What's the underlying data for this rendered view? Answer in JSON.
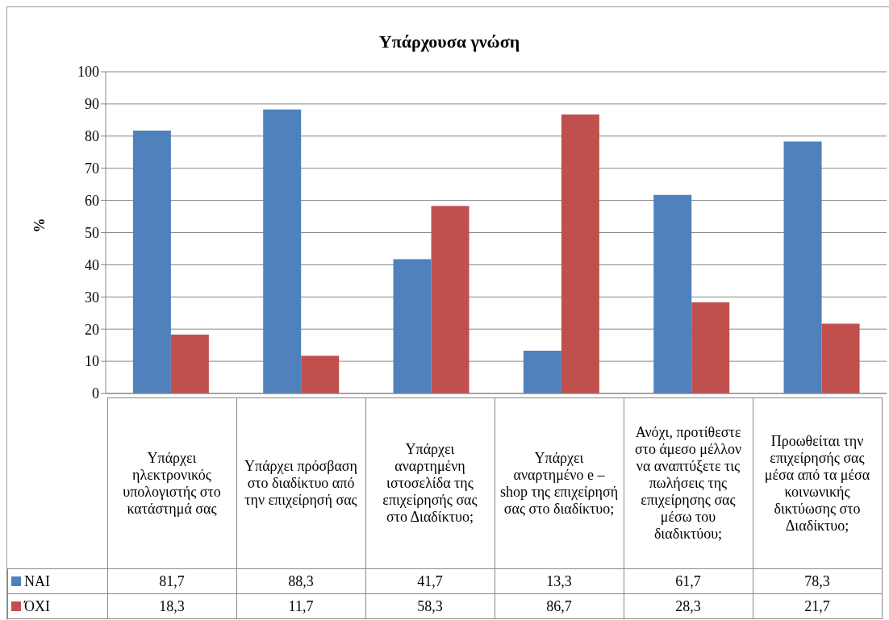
{
  "chart_data": {
    "type": "bar",
    "title": "Υπάρχουσα γνώση",
    "ylabel": "%",
    "categories": [
      "Υπάρχει ηλεκτρονικός υπολογιστής στο κατάστημά σας",
      "Υπάρχει πρόσβαση στο διαδίκτυο από την επιχείρησή σας",
      "Υπάρχει αναρτημένη ιστοσελίδα της επιχείρησής σας στο Διαδίκτυο;",
      "Υπάρχει αναρτημένο e – shop της επιχείρησή σας στο διαδίκτυο;",
      "Ανόχι, προτίθεστε στο άμεσο μέλλον να αναπτύξετε τις πωλήσεις της επιχείρησης σας μέσω του διαδικτύου;",
      "Προωθείται την επιχείρησής σας μέσα από τα μέσα κοινωνικής δικτύωσης στο Διαδίκτυο;"
    ],
    "series": [
      {
        "name": "ΝΑΙ",
        "color": "#4f81bd",
        "values": [
          81.7,
          88.3,
          41.7,
          13.3,
          61.7,
          78.3
        ],
        "value_labels": [
          "81,7",
          "88,3",
          "41,7",
          "13,3",
          "61,7",
          "78,3"
        ]
      },
      {
        "name": "ΌΧΙ",
        "color": "#c0504d",
        "values": [
          18.3,
          11.7,
          58.3,
          86.7,
          28.3,
          21.7
        ],
        "value_labels": [
          "18,3",
          "11,7",
          "58,3",
          "86,7",
          "28,3",
          "21,7"
        ]
      }
    ],
    "ylim": [
      0,
      100
    ],
    "yticks": [
      0,
      10,
      20,
      30,
      40,
      50,
      60,
      70,
      80,
      90,
      100
    ],
    "grid": "y",
    "legend": "bottom left"
  }
}
